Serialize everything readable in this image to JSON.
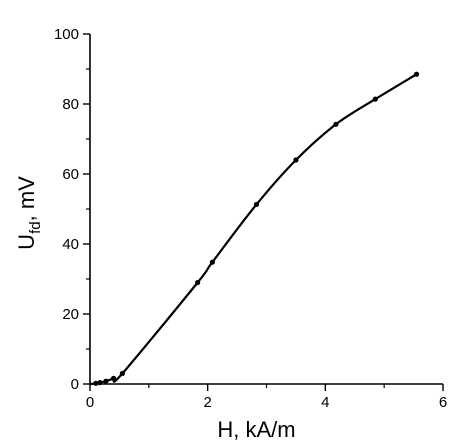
{
  "chart_data": {
    "type": "line",
    "xlabel": "H, kA/m",
    "ylabel_main": "U",
    "ylabel_sub": "fd",
    "ylabel_tail": ", mV",
    "xlim": [
      0,
      6
    ],
    "ylim": [
      0,
      100
    ],
    "x_ticks": [
      0,
      2,
      4,
      6
    ],
    "y_ticks": [
      0,
      20,
      40,
      60,
      80,
      100
    ],
    "x_tick_labels": [
      "0",
      "2",
      "4",
      "6"
    ],
    "y_tick_labels": [
      "0",
      "20",
      "40",
      "60",
      "80",
      "100"
    ],
    "grid": false,
    "series": [
      {
        "color": "#000000",
        "marker": "dot",
        "points": [
          {
            "x": 0.1,
            "y": 0.2
          },
          {
            "x": 0.17,
            "y": 0.4
          },
          {
            "x": 0.27,
            "y": 0.8
          },
          {
            "x": 0.4,
            "y": 1.6
          },
          {
            "x": 0.55,
            "y": 3.0
          },
          {
            "x": 1.83,
            "y": 29.0
          },
          {
            "x": 2.08,
            "y": 34.8
          },
          {
            "x": 2.83,
            "y": 51.3
          },
          {
            "x": 3.5,
            "y": 64.0
          },
          {
            "x": 4.18,
            "y": 74.2
          },
          {
            "x": 4.85,
            "y": 81.4
          },
          {
            "x": 5.55,
            "y": 88.5
          }
        ]
      }
    ]
  }
}
